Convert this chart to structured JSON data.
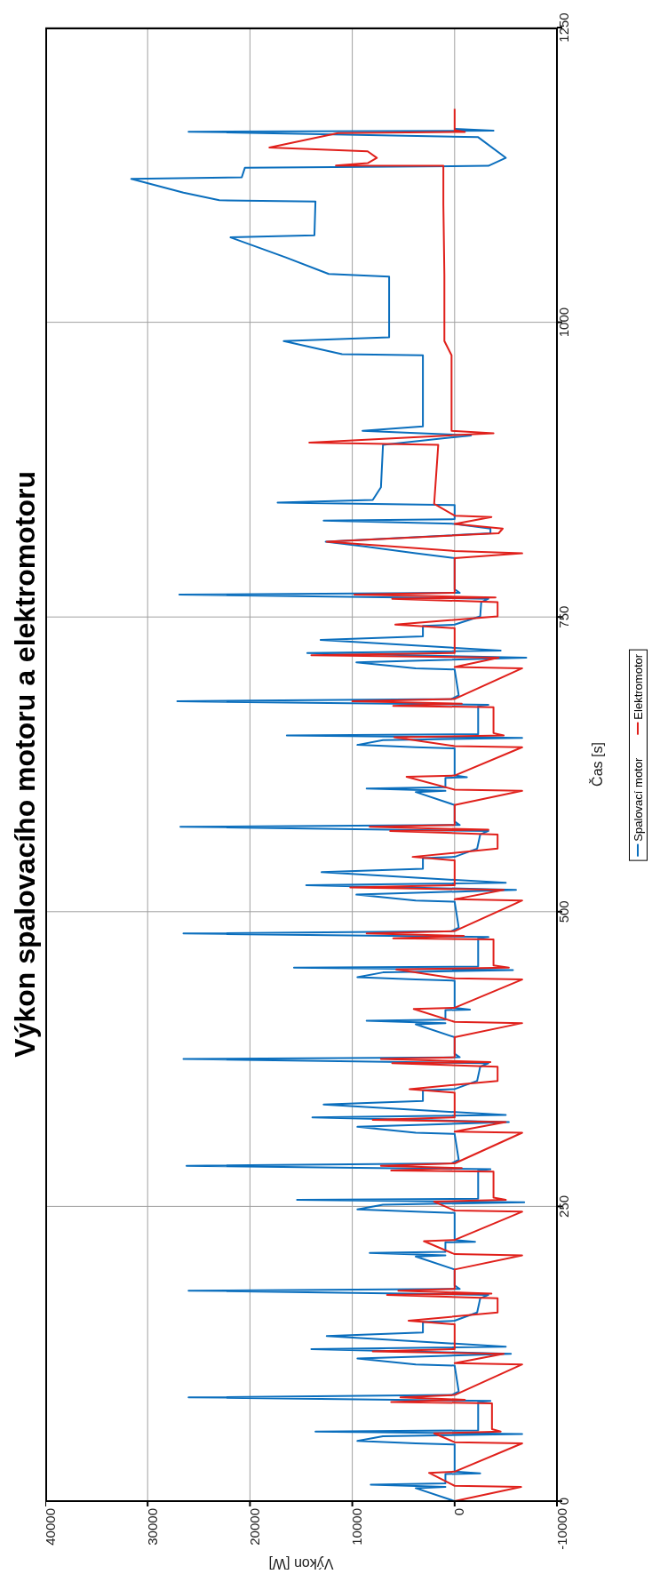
{
  "chart_data": {
    "type": "line",
    "title": "Výkon spalovacího motoru a elektromotoru",
    "xlabel": "Výkon [W]",
    "ylabel": "Čas [s]",
    "xlim": [
      40000,
      -10000
    ],
    "xticks": [
      40000,
      30000,
      20000,
      10000,
      0,
      -10000
    ],
    "ylim": [
      0,
      1250
    ],
    "yticks": [
      0,
      250,
      500,
      750,
      1000,
      1250
    ],
    "grid": true,
    "legend": "right",
    "line_style": "solid",
    "series": [
      {
        "name": "Spalovací motor",
        "color": "#0a6ebd",
        "values": [
          0,
          11,
          12,
          14,
          15,
          23,
          23.5,
          25,
          48,
          49,
          51,
          55,
          57,
          59,
          60,
          84,
          85,
          88,
          90,
          93,
          115,
          116,
          121,
          125,
          129,
          131,
          140,
          143,
          152,
          153,
          160,
          172,
          175,
          178.5,
          180,
          183,
          196.5,
          207.5,
          208.5,
          210.5,
          211.5,
          219.5,
          220,
          221.5,
          244.5,
          245.5,
          247.5,
          251.5,
          253.5,
          255.5,
          256.5,
          280.5,
          281.5,
          284.5,
          286.5,
          289.5,
          311.5,
          312.5,
          317.5,
          321.5,
          325.5,
          327.5,
          336.5,
          339.5,
          348.5,
          349.5,
          356.5,
          368.5,
          371.5,
          375,
          376.5,
          379.5,
          393.5,
          404.5,
          405.5,
          407.5,
          408.5,
          416.5,
          417,
          418.5,
          441.5,
          442.5,
          444.5,
          448.5,
          450.5,
          452.5,
          453.5,
          477.5,
          478.5,
          481.5,
          483.5,
          486.5,
          508.5,
          509.5,
          514.5,
          518.5,
          522.5,
          524.5,
          533.5,
          536.5,
          545.5,
          546.5,
          553.5,
          565.5,
          568.5,
          572,
          573.5,
          576.5,
          590.5,
          601.5,
          602.5,
          604.5,
          605.5,
          613.5,
          614,
          615.5,
          638.5,
          639.5,
          641.5,
          645.5,
          647.5,
          649.5,
          650.5,
          674.5,
          675.5,
          678.5,
          680.5,
          683.5,
          705.5,
          706.5,
          711.5,
          715.5,
          719.5,
          721.5,
          730.5,
          733.5,
          742.5,
          743.5,
          750.5,
          762.5,
          765.5,
          769,
          770.5,
          773.5,
          800,
          804,
          810,
          813.9,
          821,
          825,
          829,
          831.7,
          833,
          845,
          847,
          849.3,
          860,
          896,
          904,
          908,
          911.6,
          972,
          973,
          984,
          987.3,
          1034.4,
          1038.8,
          1041,
          1055,
          1072,
          1073.7,
          1102.5,
          1103.5,
          1110,
          1121.6,
          1123,
          1131,
          1132.7,
          1139.5,
          1157,
          1161.6,
          1162.5,
          1164
        ],
        "x": [
          0,
          3800,
          900,
          8200,
          900,
          900,
          -2500,
          0,
          0,
          3800,
          9500,
          7000,
          -6600,
          13600,
          -2300,
          -2300,
          -3500,
          26000,
          300,
          -400,
          0,
          3800,
          9500,
          -5500,
          14000,
          -5000,
          12500,
          3100,
          3100,
          0,
          -2200,
          -2500,
          -3300,
          26000,
          -500,
          0,
          0,
          3800,
          900,
          8300,
          900,
          900,
          -2000,
          0,
          0,
          3800,
          9500,
          7000,
          -6800,
          15400,
          -2300,
          -2300,
          -3500,
          26200,
          300,
          -400,
          0,
          3800,
          9500,
          -5300,
          13900,
          -5000,
          12800,
          3100,
          3100,
          0,
          -2200,
          -2500,
          -3300,
          26500,
          -500,
          0,
          0,
          3800,
          900,
          8600,
          900,
          900,
          -1500,
          0,
          0,
          3800,
          9500,
          7000,
          -5700,
          15700,
          -2300,
          -2300,
          -3300,
          26500,
          300,
          -400,
          0,
          3800,
          9600,
          -6000,
          14500,
          -5000,
          13000,
          3100,
          3100,
          0,
          -2200,
          -2500,
          -3300,
          26800,
          -500,
          0,
          0,
          3800,
          900,
          8600,
          900,
          900,
          -1200,
          0,
          0,
          3800,
          9500,
          7000,
          -6600,
          16400,
          -2300,
          -2300,
          -3300,
          27100,
          300,
          -400,
          0,
          3800,
          9600,
          -7000,
          14400,
          -4500,
          13100,
          3100,
          3100,
          0,
          -2500,
          -2600,
          -3300,
          26900,
          -500,
          0,
          0,
          3800,
          9000,
          12600,
          -3500,
          -3500,
          0,
          12800,
          0,
          0,
          17300,
          8000,
          7200,
          7000,
          -1600,
          9000,
          3100,
          3100,
          11000,
          16700,
          6400,
          6400,
          6400,
          12300,
          16500,
          21900,
          13700,
          13600,
          23000,
          26500,
          31600,
          20800,
          20500,
          -3300,
          -5000,
          -2300,
          26000,
          -3800,
          0
        ]
      },
      {
        "name": "Elektromotor",
        "color": "#e0201b",
        "values": [
          0,
          12,
          13,
          24,
          25,
          49,
          50,
          57.5,
          59,
          61,
          83,
          84,
          86,
          88,
          90,
          116,
          117,
          125,
          127,
          129,
          150,
          153,
          160,
          172,
          175,
          176,
          178.5,
          180,
          183,
          196.5,
          208.5,
          209.5,
          220.5,
          221.5,
          245.5,
          246.5,
          254,
          255.5,
          257.5,
          279.5,
          280.5,
          282.5,
          284.5,
          286.5,
          312.5,
          313.5,
          321.5,
          323.5,
          325.5,
          346.5,
          349.5,
          356.5,
          368.5,
          371.5,
          372.5,
          375,
          376.5,
          379.5,
          393.5,
          405.5,
          406.5,
          417.5,
          418.5,
          442.5,
          443.5,
          451,
          452.5,
          454.5,
          476.5,
          477.5,
          479.5,
          481.5,
          483.5,
          509.5,
          510.5,
          518.5,
          520.5,
          522.5,
          543.5,
          546.5,
          553.5,
          565.5,
          568.5,
          569.5,
          572,
          573.5,
          576.5,
          590.5,
          602.5,
          603.5,
          614.5,
          615.5,
          639.5,
          640.5,
          648,
          649.5,
          651.5,
          673.5,
          674.5,
          676.5,
          678.5,
          680.5,
          706.5,
          707.5,
          715.5,
          717.5,
          719.5,
          740.5,
          743.5,
          750.5,
          762.5,
          765.5,
          766.5,
          769,
          770.5,
          773.5,
          800,
          804,
          806,
          813.9,
          821,
          825,
          829,
          834.8,
          836,
          846,
          896,
          898,
          905.9,
          908,
          972,
          984,
          1040,
          1100,
          1132.7,
          1133,
          1135,
          1139.5,
          1145,
          1148.2,
          1160.5,
          1161.5,
          1163,
          1181
        ],
        "x": [
          0,
          -6500,
          0,
          2500,
          0,
          -6600,
          0,
          2000,
          -4500,
          -3650,
          -3650,
          6200,
          -1000,
          5300,
          0,
          -6600,
          0,
          -4800,
          8000,
          0,
          0,
          4500,
          -4200,
          -4200,
          6600,
          -3600,
          5500,
          0,
          0,
          0,
          -6600,
          0,
          3000,
          0,
          -6600,
          0,
          2000,
          -5000,
          -3800,
          -3800,
          6200,
          -700,
          7200,
          0,
          -6600,
          0,
          -5000,
          8000,
          0,
          0,
          4400,
          -4200,
          -4200,
          6100,
          -3500,
          7200,
          0,
          0,
          0,
          -6600,
          0,
          4000,
          0,
          -6600,
          0,
          5700,
          -5300,
          -3800,
          -3800,
          6000,
          -900,
          8600,
          0,
          -6600,
          0,
          -4800,
          10200,
          0,
          0,
          4100,
          -4200,
          -4200,
          6300,
          -3300,
          8300,
          0,
          0,
          0,
          -6600,
          0,
          4700,
          0,
          -6600,
          0,
          5900,
          -4800,
          -3800,
          -3800,
          6000,
          -700,
          10000,
          0,
          -6600,
          0,
          -4300,
          14000,
          0,
          0,
          5800,
          -4200,
          -4200,
          6100,
          -4000,
          9800,
          0,
          0,
          0,
          -6600,
          0,
          12500,
          -4300,
          -4700,
          0,
          -3600,
          0,
          2000,
          1600,
          14200,
          -3800,
          300,
          300,
          1000,
          1000,
          1100,
          1100,
          11600,
          8500,
          7600,
          8500,
          18100,
          11400,
          -1000,
          0,
          0
        ]
      }
    ]
  }
}
